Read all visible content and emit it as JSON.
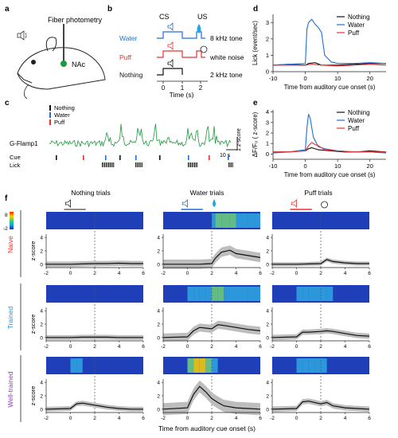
{
  "panel_labels": {
    "a": "a",
    "b": "b",
    "c": "c",
    "d": "d",
    "e": "e",
    "f": "f"
  },
  "colors": {
    "water": "#1f6fd6",
    "puff": "#e8312f",
    "nothing": "#111111",
    "trace": "#1a9a3a",
    "nacc": "#1a9a3a"
  },
  "panel_a": {
    "title": "Fiber photometry",
    "region": "NAc"
  },
  "panel_b": {
    "cs_label": "CS",
    "us_label": "US",
    "rows": [
      {
        "name": "Water",
        "tone": "8 kHz tone",
        "color": "#1f6fd6"
      },
      {
        "name": "Puff",
        "tone": "white noise",
        "color": "#e8312f"
      },
      {
        "name": "Nothing",
        "tone": "2 kHz tone",
        "color": "#111111"
      }
    ],
    "xticks": [
      "0",
      "1",
      "2"
    ],
    "xlabel": "Time (s)"
  },
  "panel_c": {
    "legend": [
      {
        "name": "Nothing",
        "color": "#111111"
      },
      {
        "name": "Water",
        "color": "#1f6fd6"
      },
      {
        "name": "Puff",
        "color": "#e8312f"
      }
    ],
    "trace_label": "G-Flamp1",
    "cue_label": "Cue",
    "lick_label": "Lick",
    "scale_y": "1 z-score",
    "scale_x": "10 s"
  },
  "panel_d": {
    "ylabel": "Lick (event/sec)",
    "xlabel": "Time from auditory cue onset (s)",
    "yticks": [
      "0",
      "1",
      "2",
      "3"
    ],
    "xticks": [
      "-10",
      "0",
      "10",
      "20"
    ],
    "legend": [
      "Nothing",
      "Water",
      "Puff"
    ]
  },
  "panel_e": {
    "ylabel": "ΔF/F₀ ( z-score)",
    "xlabel": "Time from auditory cue onset (s)",
    "yticks": [
      "0",
      "1",
      "2",
      "3",
      "4"
    ],
    "xticks": [
      "-10",
      "0",
      "10",
      "20"
    ],
    "legend": [
      "Nothing",
      "Water",
      "Puff"
    ]
  },
  "panel_f": {
    "columns": [
      "Nothing trials",
      "Water trials",
      "Puff trials"
    ],
    "rows": [
      {
        "name": "Naive",
        "color": "#e8312f"
      },
      {
        "name": "Trained",
        "color": "#2a8fd0"
      },
      {
        "name": "Well-trained",
        "color": "#8a3fae"
      }
    ],
    "colorbar": [
      "8",
      "-2"
    ],
    "ylabel": "z-score",
    "yticks": [
      "0",
      "2",
      "4"
    ],
    "xticks": [
      "-2",
      "0",
      "2",
      "4",
      "6"
    ],
    "xlabel": "Time from auditory cue onset (s)"
  },
  "chart_data": [
    {
      "type": "line",
      "panel": "d",
      "xlim": [
        -10,
        25
      ],
      "ylim": [
        0,
        3.5
      ],
      "series": [
        {
          "name": "Nothing",
          "x": [
            -10,
            -5,
            0,
            1,
            3,
            5,
            10,
            15,
            20,
            25
          ],
          "values": [
            0.4,
            0.45,
            0.4,
            0.5,
            0.55,
            0.4,
            0.4,
            0.45,
            0.5,
            0.5
          ]
        },
        {
          "name": "Water",
          "x": [
            -10,
            -5,
            0,
            0.5,
            1,
            2,
            3,
            4,
            5,
            6,
            8,
            10,
            15,
            20,
            25
          ],
          "values": [
            0.4,
            0.45,
            0.5,
            2.6,
            3.0,
            3.2,
            2.9,
            2.7,
            2.4,
            1.0,
            0.6,
            0.5,
            0.5,
            0.55,
            0.5
          ]
        },
        {
          "name": "Puff",
          "x": [
            -10,
            -5,
            0,
            2,
            5,
            10,
            15,
            20,
            25
          ],
          "values": [
            0.4,
            0.4,
            0.4,
            0.45,
            0.4,
            0.35,
            0.4,
            0.45,
            0.4
          ]
        }
      ]
    },
    {
      "type": "line",
      "panel": "e",
      "xlim": [
        -10,
        25
      ],
      "ylim": [
        -0.5,
        4.2
      ],
      "series": [
        {
          "name": "Nothing",
          "x": [
            -10,
            -5,
            0,
            1,
            2,
            4,
            8,
            12,
            16,
            20,
            25
          ],
          "values": [
            0.2,
            0.2,
            0.3,
            0.5,
            0.6,
            0.4,
            0.3,
            0.2,
            0.2,
            0.3,
            0.2
          ]
        },
        {
          "name": "Water",
          "x": [
            -10,
            -5,
            0,
            0.5,
            1,
            1.5,
            2.5,
            4,
            6,
            8,
            10,
            15,
            20,
            25
          ],
          "values": [
            0.1,
            0.2,
            0.4,
            2.5,
            3.8,
            3.4,
            1.6,
            0.7,
            0.5,
            0.4,
            0.3,
            0.2,
            0.2,
            0.1
          ]
        },
        {
          "name": "Puff",
          "x": [
            -10,
            -5,
            0,
            1,
            2,
            3,
            4,
            6,
            10,
            15,
            20,
            25
          ],
          "values": [
            0.2,
            0.2,
            0.3,
            0.8,
            1.1,
            0.9,
            0.8,
            0.4,
            0.3,
            0.2,
            0.2,
            0.2
          ]
        }
      ]
    },
    {
      "type": "area",
      "panel": "f",
      "xlim": [
        -2,
        6
      ],
      "ylim": [
        -0.5,
        4.5
      ],
      "series": [
        {
          "name": "Naive-Nothing",
          "x": [
            -2,
            0,
            1,
            2,
            3,
            4,
            5,
            6
          ],
          "values": [
            0,
            0,
            0.05,
            0.1,
            0.1,
            0.15,
            0.1,
            0.1
          ],
          "sem": 0.4
        },
        {
          "name": "Naive-Water",
          "x": [
            -2,
            0,
            1,
            2,
            2.3,
            2.8,
            3.5,
            4,
            5,
            6
          ],
          "values": [
            0,
            0,
            0,
            0.1,
            0.9,
            1.8,
            2.1,
            1.6,
            1.3,
            1.0
          ],
          "sem": 0.7
        },
        {
          "name": "Naive-Puff",
          "x": [
            -2,
            0,
            1,
            2,
            2.5,
            3,
            4,
            5,
            6
          ],
          "values": [
            0,
            0,
            0.05,
            0.1,
            0.7,
            0.4,
            0.2,
            0.1,
            0.1
          ],
          "sem": 0.3
        },
        {
          "name": "Trained-Nothing",
          "x": [
            -2,
            0,
            1,
            2,
            3,
            4,
            5,
            6
          ],
          "values": [
            0,
            0,
            0.05,
            0.05,
            0.05,
            0.0,
            0.0,
            0.0
          ],
          "sem": 0.35
        },
        {
          "name": "Trained-Water",
          "x": [
            -2,
            0,
            0.5,
            1,
            1.5,
            2,
            2.5,
            3,
            4,
            5,
            6
          ],
          "values": [
            0,
            0.1,
            1.0,
            1.5,
            1.4,
            1.3,
            1.9,
            1.8,
            1.5,
            1.2,
            1.0
          ],
          "sem": 0.6
        },
        {
          "name": "Trained-Puff",
          "x": [
            -2,
            0,
            0.5,
            1,
            2,
            2.5,
            3,
            4,
            5,
            6
          ],
          "values": [
            0,
            0.1,
            0.8,
            0.8,
            0.9,
            1.0,
            0.9,
            0.6,
            0.3,
            0.2
          ],
          "sem": 0.4
        },
        {
          "name": "Well-trained-Nothing",
          "x": [
            -2,
            0,
            0.5,
            1,
            2,
            3,
            4,
            5,
            6
          ],
          "values": [
            0,
            0.1,
            0.8,
            0.9,
            0.6,
            0.3,
            0.1,
            0.0,
            0.0
          ],
          "sem": 0.35
        },
        {
          "name": "Well-trained-Water",
          "x": [
            -2,
            0,
            0.5,
            1,
            1.5,
            2,
            2.5,
            3,
            4,
            5,
            6
          ],
          "values": [
            0,
            0.2,
            2.2,
            3.4,
            2.6,
            1.6,
            1.0,
            0.5,
            0.2,
            0.1,
            0.0
          ],
          "sem": 0.9
        },
        {
          "name": "Well-trained-Puff",
          "x": [
            -2,
            0,
            0.5,
            1,
            1.5,
            2,
            2.5,
            3,
            4,
            5,
            6
          ],
          "values": [
            0,
            0.1,
            1.1,
            1.2,
            1.0,
            0.8,
            1.0,
            0.5,
            0.2,
            0.1,
            0.0
          ],
          "sem": 0.4
        }
      ]
    }
  ]
}
